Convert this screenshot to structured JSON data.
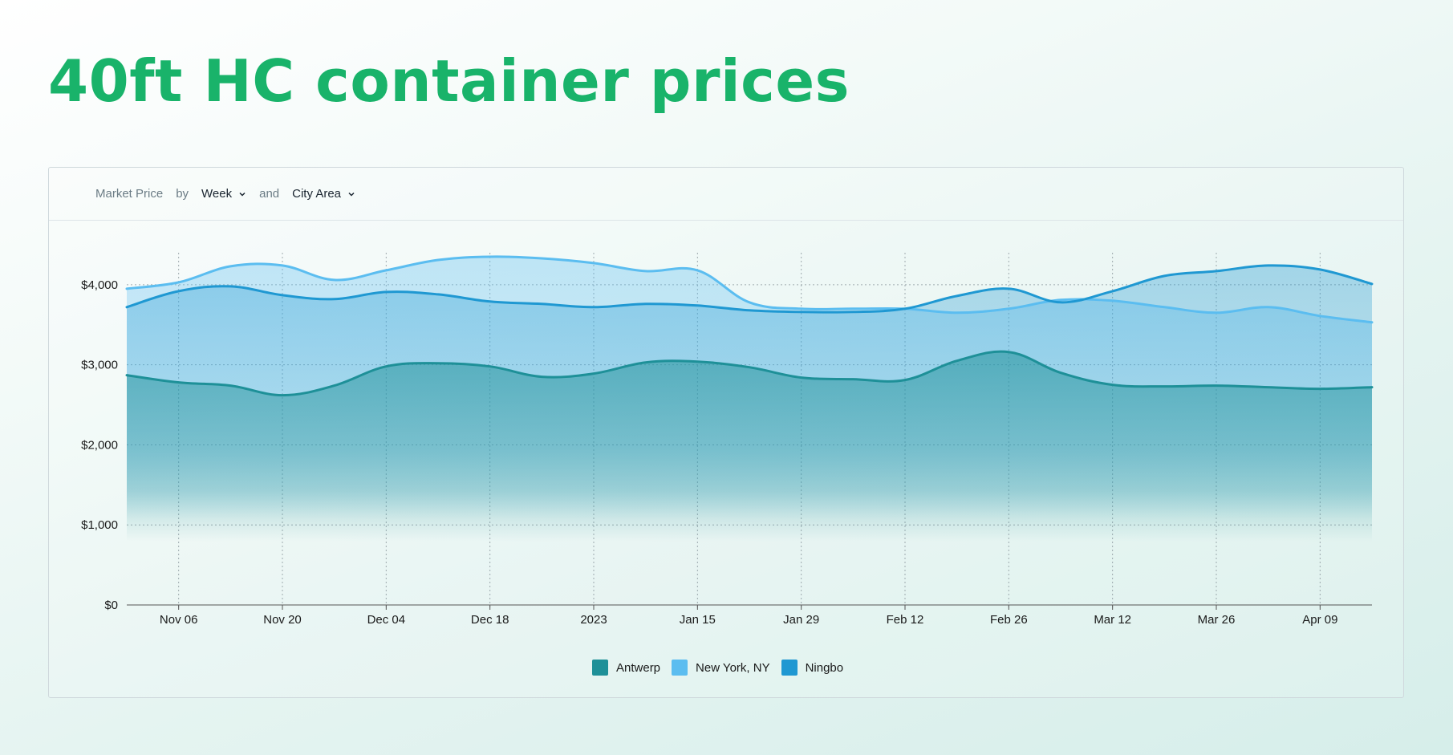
{
  "header": {
    "title": "40ft HC container prices"
  },
  "controls": {
    "metric_label": "Market Price",
    "by_label": "by",
    "period_value": "Week",
    "and_label": "and",
    "group_value": "City Area"
  },
  "chart_data": {
    "type": "area",
    "title": "40ft HC container prices",
    "xlabel": "",
    "ylabel": "Market Price",
    "ylim": [
      0,
      4500
    ],
    "grid": true,
    "legend_position": "bottom-center",
    "y_ticks": [
      0,
      1000,
      2000,
      3000,
      4000
    ],
    "y_tick_labels": [
      "$0",
      "$1,000",
      "$2,000",
      "$3,000",
      "$4,000"
    ],
    "x_tick_labels": [
      "Nov 06",
      "Nov 20",
      "Dec 04",
      "Dec 18",
      "2023",
      "Jan 15",
      "Jan 29",
      "Feb 12",
      "Feb 26",
      "Mar 12",
      "Mar 26",
      "Apr 09"
    ],
    "x_tick_week_index": [
      1,
      3,
      5,
      7,
      9,
      11,
      13,
      15,
      17,
      19,
      21,
      23
    ],
    "num_weeks": 25,
    "series": [
      {
        "name": "Antwerp",
        "color": "#1e9098",
        "values": [
          2870,
          2780,
          2740,
          2620,
          2740,
          2980,
          3020,
          2980,
          2850,
          2890,
          3030,
          3040,
          2970,
          2840,
          2820,
          2810,
          3050,
          3160,
          2900,
          2750,
          2730,
          2740,
          2720,
          2700,
          2720
        ]
      },
      {
        "name": "New York, NY",
        "color": "#5bbdf0",
        "values": [
          3950,
          4030,
          4230,
          4240,
          4060,
          4180,
          4310,
          4350,
          4330,
          4270,
          4170,
          4180,
          3780,
          3700,
          3700,
          3700,
          3650,
          3700,
          3810,
          3800,
          3720,
          3650,
          3720,
          3610,
          3530
        ]
      },
      {
        "name": "Ningbo",
        "color": "#1f98d2",
        "values": [
          3720,
          3920,
          3980,
          3870,
          3820,
          3910,
          3880,
          3790,
          3760,
          3720,
          3760,
          3740,
          3680,
          3660,
          3660,
          3700,
          3860,
          3950,
          3780,
          3920,
          4110,
          4170,
          4240,
          4190,
          4010
        ]
      }
    ]
  }
}
